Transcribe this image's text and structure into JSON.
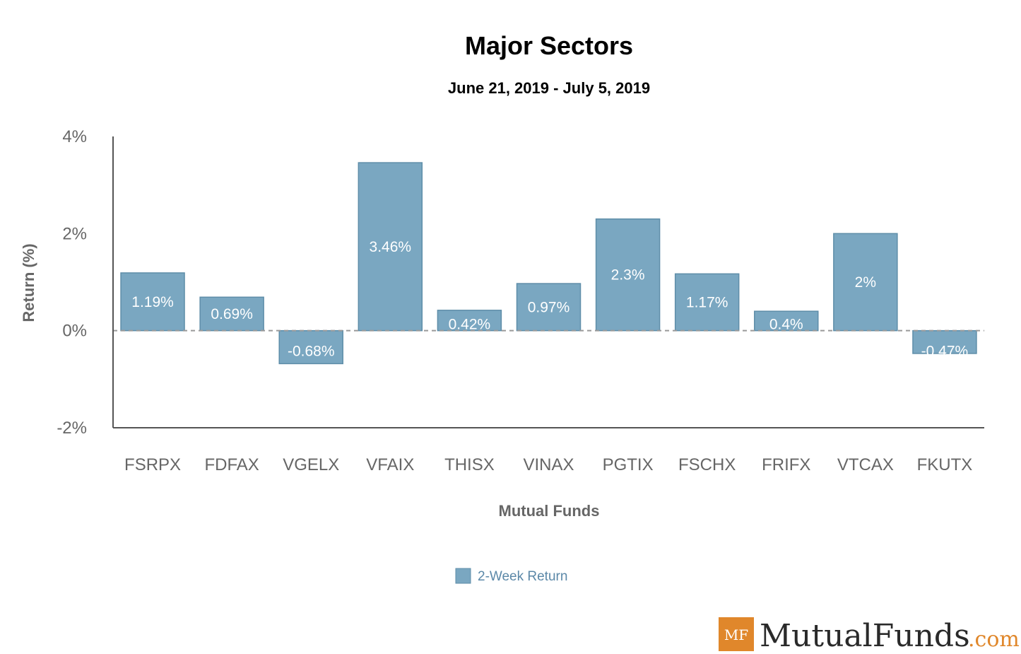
{
  "chart_data": {
    "type": "bar",
    "title": "Major Sectors",
    "subtitle": "June 21, 2019 - July 5, 2019",
    "xlabel": "Mutual Funds",
    "ylabel": "Return (%)",
    "categories": [
      "FSRPX",
      "FDFAX",
      "VGELX",
      "VFAIX",
      "THISX",
      "VINAX",
      "PGTIX",
      "FSCHX",
      "FRIFX",
      "VTCAX",
      "FKUTX"
    ],
    "series": [
      {
        "name": "2-Week Return",
        "values": [
          1.19,
          0.69,
          -0.68,
          3.46,
          0.42,
          0.97,
          2.3,
          1.17,
          0.4,
          2,
          -0.47
        ],
        "labels": [
          "1.19%",
          "0.69%",
          "-0.68%",
          "3.46%",
          "0.42%",
          "0.97%",
          "2.3%",
          "1.17%",
          "0.4%",
          "2%",
          "-0.47%"
        ]
      }
    ],
    "yticks": [
      -2,
      0,
      2,
      4
    ],
    "ytick_labels": [
      "-2%",
      "0%",
      "2%",
      "4%"
    ],
    "ylim": [
      -2,
      4
    ],
    "legend": "bottom-center",
    "colors": {
      "bar": "#7aa7c1",
      "bar_stroke": "#5f8ea9",
      "axis": "#555555",
      "zero_line": "#999999"
    }
  },
  "logo": {
    "badge": "MF",
    "name": "MutualFunds",
    "suffix": ".com"
  }
}
